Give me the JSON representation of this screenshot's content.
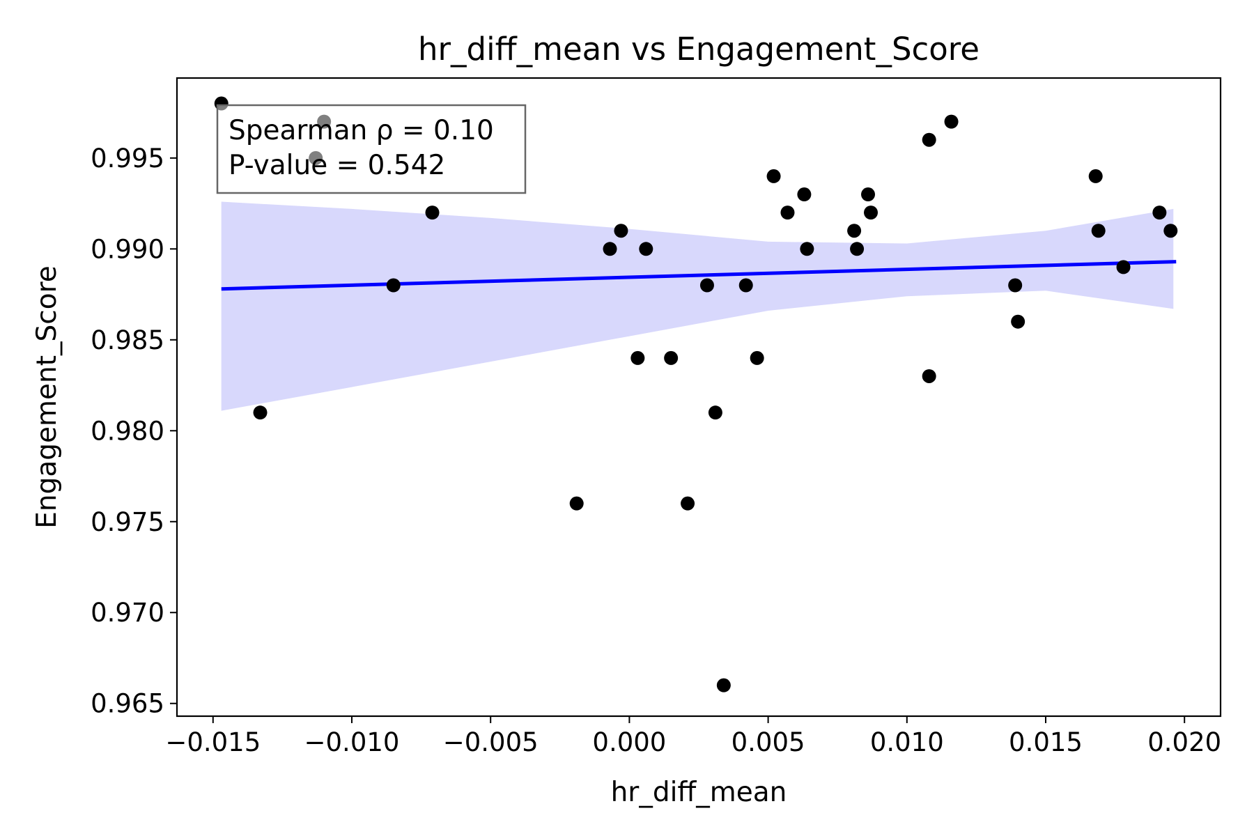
{
  "chart_data": {
    "type": "scatter",
    "title": "hr_diff_mean vs Engagement_Score",
    "xlabel": "hr_diff_mean",
    "ylabel": "Engagement_Score",
    "xlim": [
      -0.0163,
      0.0213
    ],
    "ylim": [
      0.9643,
      0.9994
    ],
    "xticks": [
      -0.015,
      -0.01,
      -0.005,
      0.0,
      0.005,
      0.01,
      0.015,
      0.02
    ],
    "xtick_labels": [
      "−0.015",
      "−0.010",
      "−0.005",
      "0.000",
      "0.005",
      "0.010",
      "0.015",
      "0.020"
    ],
    "yticks": [
      0.965,
      0.97,
      0.975,
      0.98,
      0.985,
      0.99,
      0.995
    ],
    "ytick_labels": [
      "0.965",
      "0.970",
      "0.975",
      "0.980",
      "0.985",
      "0.990",
      "0.995"
    ],
    "points": [
      {
        "x": -0.0147,
        "y": 0.998
      },
      {
        "x": -0.011,
        "y": 0.997
      },
      {
        "x": -0.0113,
        "y": 0.995
      },
      {
        "x": -0.0133,
        "y": 0.981
      },
      {
        "x": -0.0085,
        "y": 0.988
      },
      {
        "x": -0.0071,
        "y": 0.992
      },
      {
        "x": -0.0019,
        "y": 0.976
      },
      {
        "x": -0.0007,
        "y": 0.99
      },
      {
        "x": -0.0003,
        "y": 0.991
      },
      {
        "x": 0.0003,
        "y": 0.984
      },
      {
        "x": 0.0006,
        "y": 0.99
      },
      {
        "x": 0.0015,
        "y": 0.984
      },
      {
        "x": 0.0021,
        "y": 0.976
      },
      {
        "x": 0.0028,
        "y": 0.988
      },
      {
        "x": 0.0031,
        "y": 0.981
      },
      {
        "x": 0.0034,
        "y": 0.966
      },
      {
        "x": 0.0042,
        "y": 0.988
      },
      {
        "x": 0.0046,
        "y": 0.984
      },
      {
        "x": 0.0052,
        "y": 0.994
      },
      {
        "x": 0.0057,
        "y": 0.992
      },
      {
        "x": 0.0063,
        "y": 0.993
      },
      {
        "x": 0.0064,
        "y": 0.99
      },
      {
        "x": 0.0081,
        "y": 0.991
      },
      {
        "x": 0.0082,
        "y": 0.99
      },
      {
        "x": 0.0086,
        "y": 0.993
      },
      {
        "x": 0.0087,
        "y": 0.992
      },
      {
        "x": 0.0108,
        "y": 0.983
      },
      {
        "x": 0.0108,
        "y": 0.996
      },
      {
        "x": 0.0116,
        "y": 0.997
      },
      {
        "x": 0.0139,
        "y": 0.988
      },
      {
        "x": 0.014,
        "y": 0.986
      },
      {
        "x": 0.0168,
        "y": 0.994
      },
      {
        "x": 0.0169,
        "y": 0.991
      },
      {
        "x": 0.0178,
        "y": 0.989
      },
      {
        "x": 0.0191,
        "y": 0.992
      },
      {
        "x": 0.0195,
        "y": 0.991
      }
    ],
    "regression_line": {
      "x": [
        -0.0147,
        0.0197
      ],
      "y": [
        0.9878,
        0.9893
      ]
    },
    "confidence_band": {
      "x": [
        -0.0147,
        -0.01,
        -0.005,
        0.0,
        0.005,
        0.01,
        0.015,
        0.0196
      ],
      "upper": [
        0.9926,
        0.9922,
        0.9917,
        0.9911,
        0.9904,
        0.9903,
        0.991,
        0.9922
      ],
      "lower": [
        0.9811,
        0.9824,
        0.9838,
        0.9852,
        0.9866,
        0.9874,
        0.9877,
        0.9867
      ]
    },
    "annotation": {
      "lines": [
        "Spearman ρ = 0.10",
        "P-value = 0.542"
      ],
      "position": "top-left"
    },
    "grid": false,
    "colors": {
      "points": "#000000",
      "line": "#0000ff",
      "band": "#d8d8fc",
      "annotation_border": "#666666"
    }
  }
}
